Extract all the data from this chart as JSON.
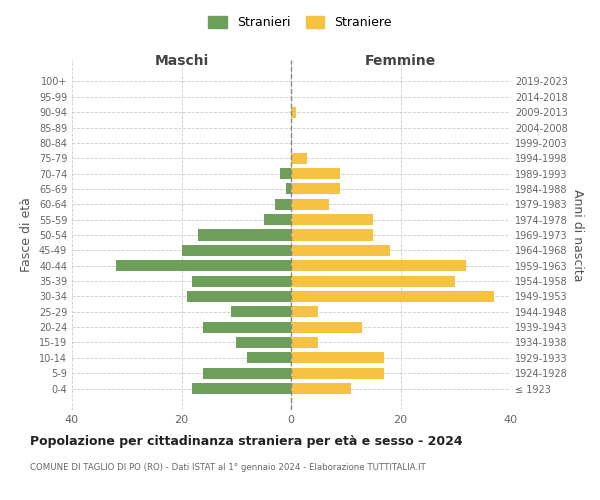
{
  "age_groups": [
    "100+",
    "95-99",
    "90-94",
    "85-89",
    "80-84",
    "75-79",
    "70-74",
    "65-69",
    "60-64",
    "55-59",
    "50-54",
    "45-49",
    "40-44",
    "35-39",
    "30-34",
    "25-29",
    "20-24",
    "15-19",
    "10-14",
    "5-9",
    "0-4"
  ],
  "birth_years": [
    "≤ 1923",
    "1924-1928",
    "1929-1933",
    "1934-1938",
    "1939-1943",
    "1944-1948",
    "1949-1953",
    "1954-1958",
    "1959-1963",
    "1964-1968",
    "1969-1973",
    "1974-1978",
    "1979-1983",
    "1984-1988",
    "1989-1993",
    "1994-1998",
    "1999-2003",
    "2004-2008",
    "2009-2013",
    "2014-2018",
    "2019-2023"
  ],
  "maschi": [
    0,
    0,
    0,
    0,
    0,
    0,
    2,
    1,
    3,
    5,
    17,
    20,
    32,
    18,
    19,
    11,
    16,
    10,
    8,
    16,
    18
  ],
  "femmine": [
    0,
    0,
    1,
    0,
    0,
    3,
    9,
    9,
    7,
    15,
    15,
    18,
    32,
    30,
    37,
    5,
    13,
    5,
    17,
    17,
    11
  ],
  "color_maschi": "#6d9e5a",
  "color_femmine": "#f5c242",
  "title": "Popolazione per cittadinanza straniera per età e sesso - 2024",
  "subtitle": "COMUNE DI TAGLIO DI PO (RO) - Dati ISTAT al 1° gennaio 2024 - Elaborazione TUTTITALIA.IT",
  "xlabel_left": "Maschi",
  "xlabel_right": "Femmine",
  "ylabel_left": "Fasce di età",
  "ylabel_right": "Anni di nascita",
  "legend_maschi": "Stranieri",
  "legend_femmine": "Straniere",
  "xlim": 40,
  "background_color": "#ffffff",
  "grid_color": "#cccccc"
}
